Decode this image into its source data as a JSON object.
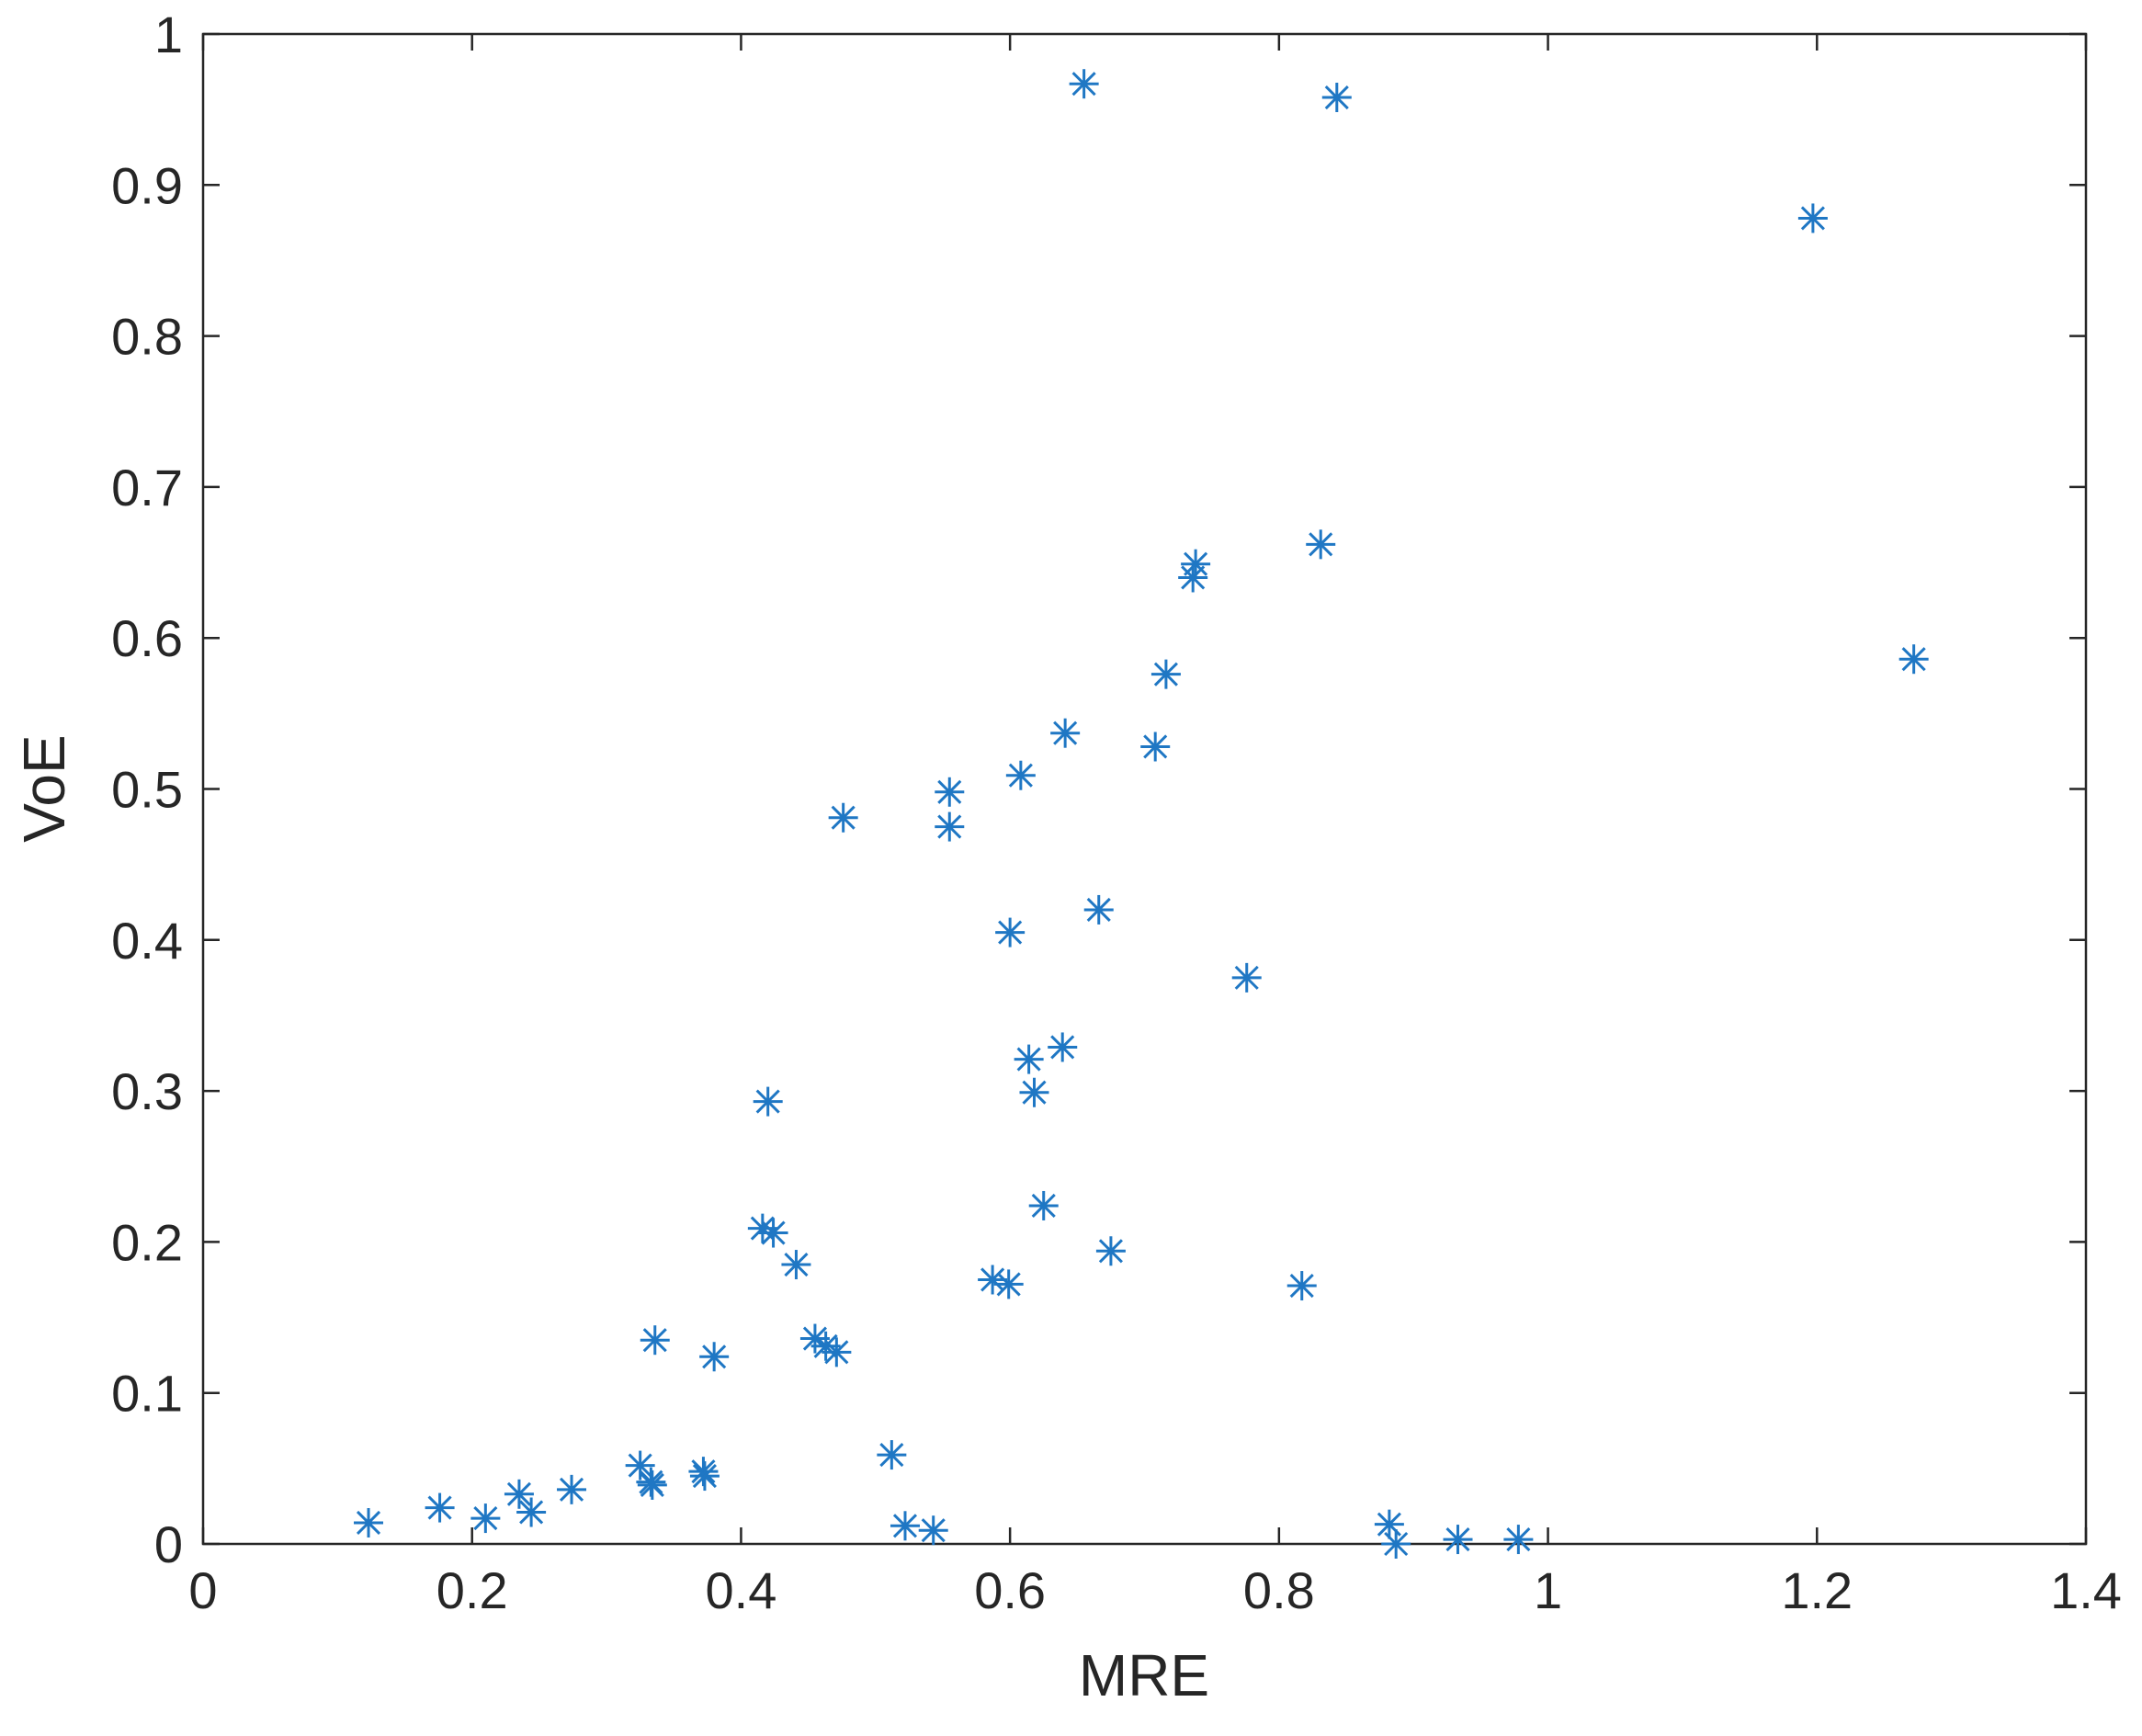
{
  "chart_data": {
    "type": "scatter",
    "xlabel": "MRE",
    "ylabel": "VoE",
    "xlim": [
      0,
      1.4
    ],
    "ylim": [
      0,
      1
    ],
    "xticks": [
      0,
      0.2,
      0.4,
      0.6,
      0.8,
      1,
      1.2,
      1.4
    ],
    "yticks": [
      0,
      0.1,
      0.2,
      0.3,
      0.4,
      0.5,
      0.6,
      0.7,
      0.8,
      0.9,
      1
    ],
    "color": "#1f77c4",
    "x": [
      0.123,
      0.176,
      0.21,
      0.235,
      0.244,
      0.274,
      0.325,
      0.333,
      0.334,
      0.336,
      0.372,
      0.373,
      0.38,
      0.416,
      0.424,
      0.42,
      0.441,
      0.455,
      0.463,
      0.471,
      0.476,
      0.512,
      0.522,
      0.543,
      0.555,
      0.555,
      0.587,
      0.599,
      0.6,
      0.608,
      0.614,
      0.618,
      0.625,
      0.639,
      0.641,
      0.655,
      0.666,
      0.675,
      0.708,
      0.716,
      0.736,
      0.738,
      0.776,
      0.817,
      0.831,
      0.843,
      0.882,
      0.887,
      0.933,
      0.978,
      1.197,
      1.272
    ],
    "values": [
      0.014,
      0.024,
      0.017,
      0.033,
      0.021,
      0.036,
      0.052,
      0.041,
      0.039,
      0.135,
      0.048,
      0.045,
      0.124,
      0.209,
      0.206,
      0.293,
      0.185,
      0.136,
      0.131,
      0.127,
      0.481,
      0.059,
      0.012,
      0.009,
      0.498,
      0.475,
      0.175,
      0.172,
      0.405,
      0.509,
      0.321,
      0.299,
      0.224,
      0.329,
      0.537,
      0.967,
      0.42,
      0.194,
      0.528,
      0.576,
      0.64,
      0.649,
      0.375,
      0.171,
      0.662,
      0.958,
      0.013,
      0.0,
      0.003,
      0.003,
      0.878,
      0.586
    ]
  }
}
